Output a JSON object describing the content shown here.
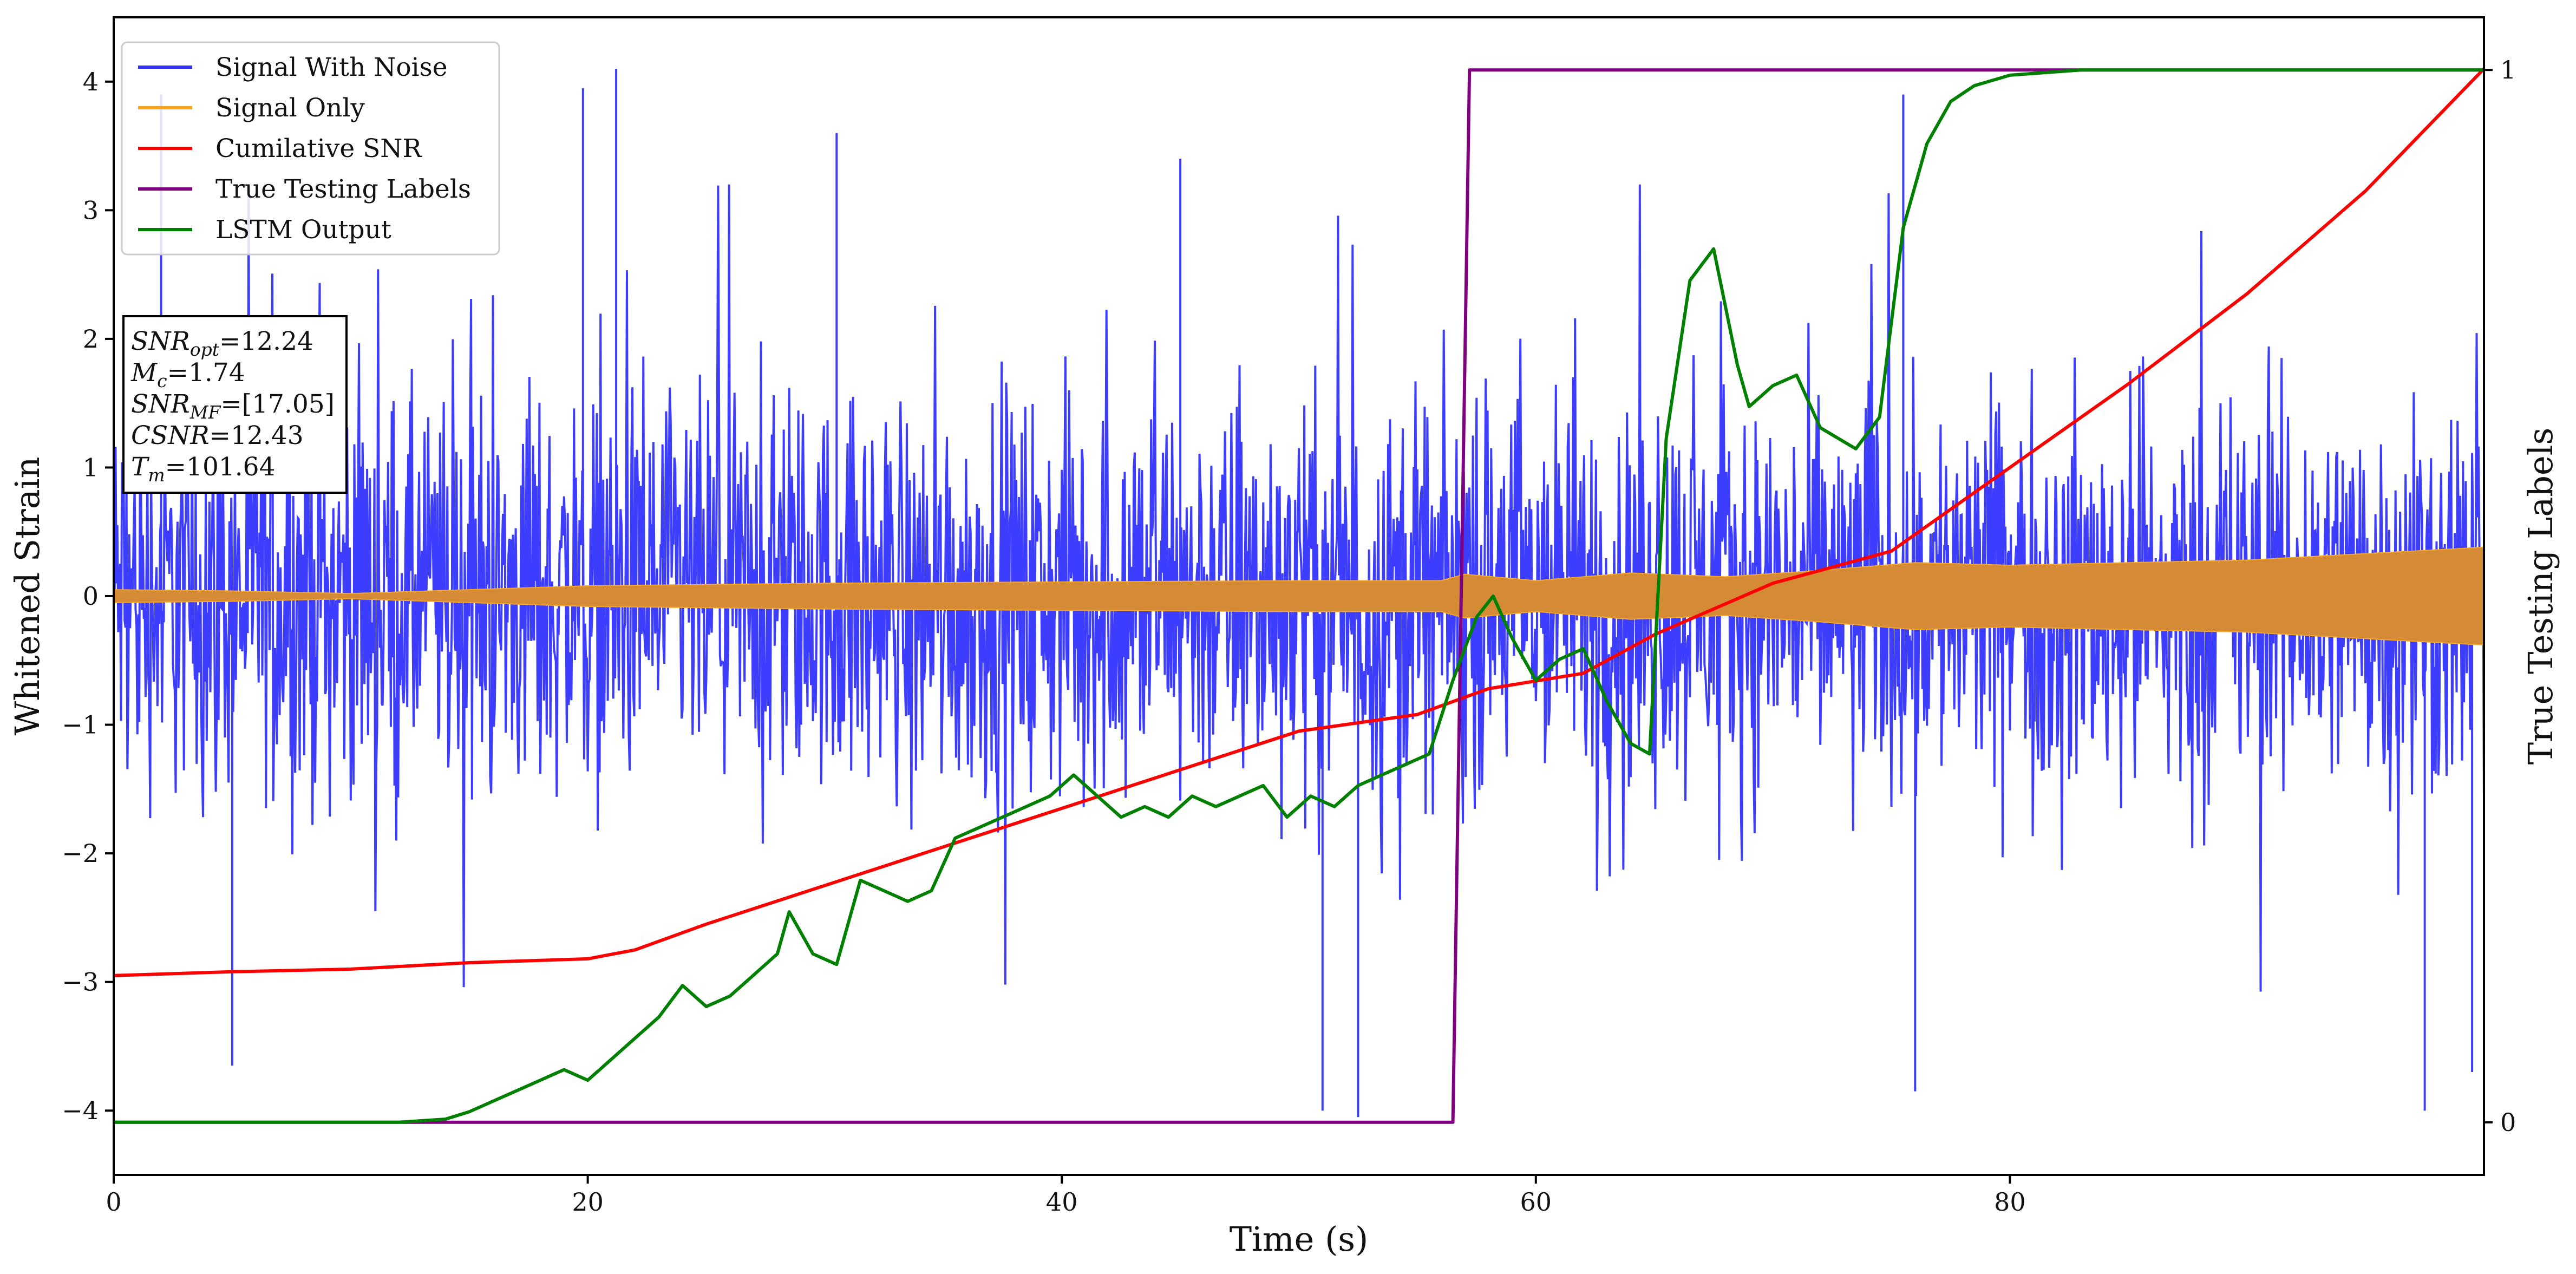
{
  "chart_data": {
    "type": "line",
    "xlabel": "Time (s)",
    "ylabel": "Whitened Strain",
    "y2label": "True Testing Labels",
    "xlim": [
      0,
      100
    ],
    "ylim": [
      -4.5,
      4.5
    ],
    "y2lim": [
      -0.05,
      1.05
    ],
    "xticks": [
      0,
      20,
      40,
      60,
      80
    ],
    "yticks": [
      -4,
      -3,
      -2,
      -1,
      0,
      1,
      2,
      3,
      4
    ],
    "y2ticks": [
      0,
      1
    ],
    "legend_position": "top-left",
    "annotation": {
      "lines": [
        {
          "sym": "SNR",
          "sub": "opt",
          "text": "=12.24"
        },
        {
          "sym": "M",
          "sub": "c",
          "text": "=1.74"
        },
        {
          "sym": "SNR",
          "sub": "MF",
          "text": "=[17.05]"
        },
        {
          "sym": "CSNR",
          "sub": "",
          "text": "=12.43"
        },
        {
          "sym": "T",
          "sub": "m",
          "text": "=101.64"
        }
      ]
    },
    "series": [
      {
        "name": "Signal With Noise",
        "color": "#3333ff",
        "axis": "left",
        "kind": "noise",
        "approx_band": {
          "x": [
            0,
            100
          ],
          "low": -3.2,
          "high": 3.2
        },
        "notable_spikes": [
          {
            "x": 2,
            "y": 3.9
          },
          {
            "x": 19.8,
            "y": 3.95
          },
          {
            "x": 21.2,
            "y": 4.1
          },
          {
            "x": 30.5,
            "y": 3.6
          },
          {
            "x": 45,
            "y": 3.4
          },
          {
            "x": 51,
            "y": -4.0
          },
          {
            "x": 52.5,
            "y": -4.05
          },
          {
            "x": 75.5,
            "y": 3.9
          },
          {
            "x": 76,
            "y": -3.85
          },
          {
            "x": 97.5,
            "y": -4.0
          },
          {
            "x": 99.5,
            "y": -3.7
          },
          {
            "x": 5,
            "y": -3.65
          }
        ]
      },
      {
        "name": "Signal Only",
        "color": "#f5a623",
        "axis": "left",
        "kind": "envelope",
        "x": [
          0,
          5,
          10,
          20,
          30,
          40,
          50,
          56,
          57,
          60,
          64,
          68,
          72,
          76,
          80,
          90,
          100
        ],
        "amplitude": [
          0.05,
          0.04,
          0.02,
          0.08,
          0.1,
          0.11,
          0.12,
          0.12,
          0.17,
          0.12,
          0.18,
          0.15,
          0.2,
          0.26,
          0.24,
          0.28,
          0.38
        ]
      },
      {
        "name": "Cumilative SNR",
        "color": "#ff0000",
        "axis": "left",
        "x": [
          0,
          5,
          10,
          15,
          20,
          22,
          25,
          30,
          35,
          40,
          45,
          50,
          55,
          58,
          62,
          65,
          70,
          75,
          80,
          85,
          90,
          95,
          100
        ],
        "y": [
          -2.95,
          -2.92,
          -2.9,
          -2.85,
          -2.82,
          -2.75,
          -2.55,
          -2.25,
          -1.95,
          -1.65,
          -1.35,
          -1.05,
          -0.92,
          -0.72,
          -0.6,
          -0.3,
          0.1,
          0.35,
          1.0,
          1.65,
          2.35,
          3.15,
          4.1
        ]
      },
      {
        "name": "True Testing Labels",
        "color": "#800080",
        "axis": "right",
        "x": [
          0,
          56.5,
          57.2,
          100
        ],
        "y": [
          0,
          0,
          1,
          1
        ]
      },
      {
        "name": "LSTM Output",
        "color": "#008000",
        "axis": "right",
        "x": [
          0,
          12,
          14,
          15,
          16,
          17,
          18,
          19,
          20,
          21,
          22,
          23,
          24,
          25,
          26,
          27,
          28,
          28.5,
          29.5,
          30.5,
          31.5,
          32.5,
          33.5,
          34.5,
          35.5,
          36.5,
          37.5,
          38.5,
          39.5,
          40.5,
          41.5,
          42.5,
          43.5,
          44.5,
          45.5,
          46.5,
          47.5,
          48.5,
          49.5,
          50.5,
          51.5,
          52.5,
          53.5,
          54.5,
          55.5,
          56.5,
          57.5,
          58.2,
          59,
          60,
          61,
          62,
          63,
          64,
          64.8,
          65.5,
          66.5,
          67.5,
          68.5,
          69,
          70,
          71,
          72,
          73.5,
          74.5,
          75.5,
          76.5,
          77.5,
          78.5,
          80,
          83,
          90,
          100
        ],
        "y": [
          0,
          0,
          0.003,
          0.01,
          0.02,
          0.03,
          0.04,
          0.05,
          0.04,
          0.06,
          0.08,
          0.1,
          0.13,
          0.11,
          0.12,
          0.14,
          0.16,
          0.2,
          0.16,
          0.15,
          0.23,
          0.22,
          0.21,
          0.22,
          0.27,
          0.28,
          0.29,
          0.3,
          0.31,
          0.33,
          0.31,
          0.29,
          0.3,
          0.29,
          0.31,
          0.3,
          0.31,
          0.32,
          0.29,
          0.31,
          0.3,
          0.32,
          0.33,
          0.34,
          0.35,
          0.42,
          0.48,
          0.5,
          0.46,
          0.42,
          0.44,
          0.45,
          0.4,
          0.36,
          0.35,
          0.65,
          0.8,
          0.83,
          0.72,
          0.68,
          0.7,
          0.71,
          0.66,
          0.64,
          0.67,
          0.85,
          0.93,
          0.97,
          0.985,
          0.995,
          1.0,
          1.0,
          1.0
        ]
      }
    ]
  }
}
